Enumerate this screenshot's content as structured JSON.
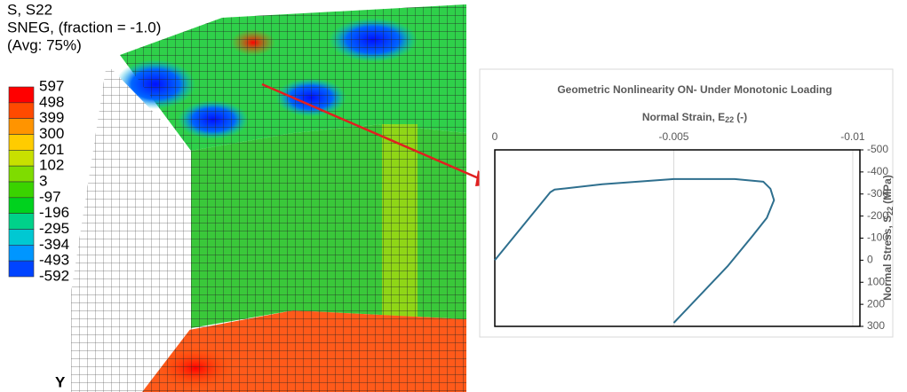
{
  "contour_legend": {
    "title_lines": [
      "S, S22",
      "SNEG, (fraction = -1.0)",
      "(Avg: 75%)"
    ],
    "values": [
      597,
      498,
      399,
      300,
      201,
      102,
      3,
      -97,
      -196,
      -295,
      -394,
      -493,
      -592
    ],
    "colors": [
      "#ff0000",
      "#ff4a00",
      "#ff9400",
      "#ffcc00",
      "#c8e000",
      "#7fdc00",
      "#3ad300",
      "#00d21e",
      "#00d28a",
      "#00c8d2",
      "#0096ff",
      "#0044ff"
    ]
  },
  "triad_label": "Y",
  "chart_data": {
    "type": "line",
    "title": "Geometric Nonlinearity ON- Under Monotonic Loading",
    "x_label": "Normal Strain, E",
    "x_label_sub": "22",
    "x_label_end": "(-)",
    "y_label": "Normal Stress, S",
    "y_label_sub": "22",
    "y_label_end": "(MPa)",
    "x": [
      0,
      -0.00155,
      -0.00167,
      -0.003,
      -0.005,
      -0.0067,
      -0.0075,
      -0.0077,
      -0.0078,
      -0.0076,
      -0.0072,
      -0.0065,
      -0.005
    ],
    "series": [
      {
        "color": "#2e6f8e",
        "values": [
          0,
          -308,
          -320,
          -344,
          -368,
          -368,
          -356,
          -324,
          -272,
          -192,
          -110,
          28,
          284
        ]
      }
    ],
    "xlim": [
      0,
      -0.0102
    ],
    "xticks": [
      0,
      -0.005,
      -0.01
    ],
    "ylim": [
      300,
      -500
    ],
    "yticks": [
      -500,
      -400,
      -300,
      -200,
      -100,
      0,
      100,
      200,
      300
    ],
    "grid": true
  }
}
